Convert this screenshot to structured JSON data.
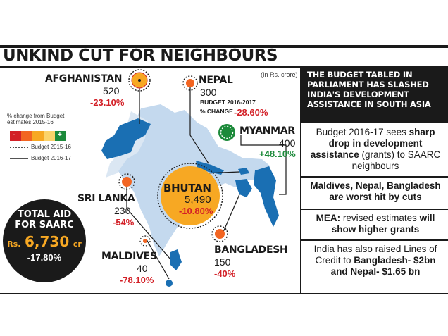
{
  "headline": "UNKIND CUT FOR NEIGHBOURS",
  "unit": "(In Rs. crore)",
  "legend": {
    "title": "% change from Budget estimates 2015-16",
    "scale_minus": "-",
    "scale_plus": "+",
    "item_dashed": "Budget 2015-16",
    "item_solid": "Budget 2016-17"
  },
  "countries": {
    "afghanistan": {
      "name": "AFGHANISTAN",
      "value": "520",
      "change": "-23.10%"
    },
    "nepal": {
      "name": "NEPAL",
      "value": "300",
      "sub1": "BUDGET 2016-2017",
      "sub2": "% CHANGE",
      "change": "-28.60%"
    },
    "myanmar": {
      "name": "MYANMAR",
      "value": "400",
      "change": "+48.10%"
    },
    "bhutan": {
      "name": "BHUTAN",
      "value": "5,490",
      "change": "-10.80%"
    },
    "sri_lanka": {
      "name": "SRI LANKA",
      "value": "230",
      "change": "-54%"
    },
    "maldives": {
      "name": "MALDIVES",
      "value": "40",
      "change": "-78.10%"
    },
    "bangladesh": {
      "name": "BANGLADESH",
      "value": "150",
      "change": "-40%"
    }
  },
  "total": {
    "line1": "TOTAL AID",
    "line2": "FOR SAARC",
    "rs": "Rs.",
    "amount": "6,730",
    "cr": "cr",
    "change": "-17.80%"
  },
  "sidebar": {
    "header": "THE BUDGET TABLED IN PARLIAMENT HAS SLASHED INDIA'S DEVELOPMENT ASSISTANCE IN SOUTH ASIA",
    "p1_a": "Budget 2016-17 sees ",
    "p1_b": "sharp drop in development assistance",
    "p1_c": " (grants) to SAARC neighbours",
    "p2": "Maldives, Nepal, Bangladesh are worst hit by cuts",
    "p3_a": "MEA:",
    "p3_b": " revised estimates ",
    "p3_c": "will show higher grants",
    "p4_a": "India has also raised Lines of Credit to ",
    "p4_b": "Bangladesh- $2bn and Nepal- $1.65 bn"
  },
  "colors": {
    "land": "#c4d9ee",
    "country": "#1a6fb3",
    "orange": "#f7a823",
    "red": "#d32027",
    "green": "#1c8a3a"
  }
}
